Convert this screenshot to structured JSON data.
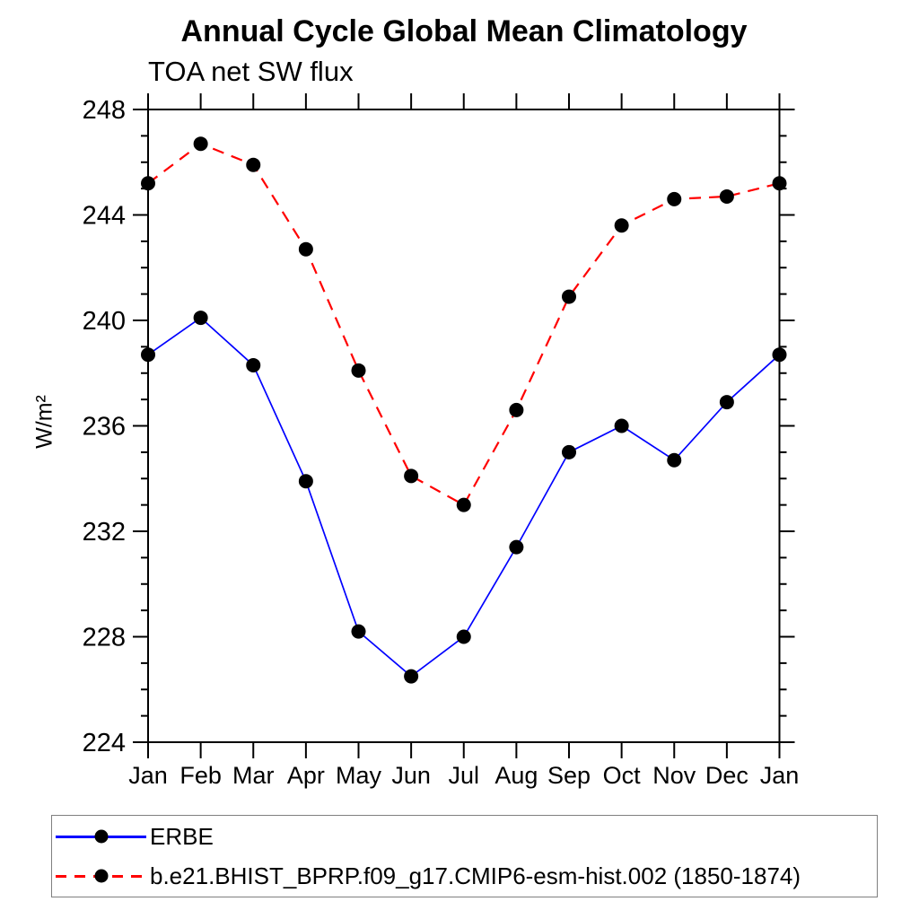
{
  "page": {
    "background": "#ffffff",
    "text_color": "#000000"
  },
  "chart_data": {
    "type": "line",
    "title": "Annual Cycle Global Mean Climatology",
    "subtitle": "TOA net SW flux",
    "ylabel": "W/m²",
    "x_categories": [
      "Jan",
      "Feb",
      "Mar",
      "Apr",
      "May",
      "Jun",
      "Jul",
      "Aug",
      "Sep",
      "Oct",
      "Nov",
      "Dec",
      "Jan"
    ],
    "ylim": [
      224,
      248
    ],
    "ytick_major_step": 4,
    "ytick_minor_step": 1,
    "ytick_labels": [
      "224",
      "228",
      "232",
      "236",
      "240",
      "244",
      "248"
    ],
    "grid": false,
    "legend_position": "bottom-left-box",
    "axis_color": "#000000",
    "marker_color": "#000000",
    "legend_border_color": "#7f7f7f",
    "series": [
      {
        "name": "ERBE",
        "color": "#0000ff",
        "line_style": "solid",
        "marker": "filled-circle",
        "values": [
          238.7,
          240.1,
          238.3,
          233.9,
          228.2,
          226.5,
          228.0,
          231.4,
          235.0,
          236.0,
          234.7,
          236.9,
          238.7
        ]
      },
      {
        "name": "b.e21.BHIST_BPRP.f09_g17.CMIP6-esm-hist.002 (1850-1874)",
        "color": "#ff0000",
        "line_style": "dashed",
        "marker": "filled-circle",
        "values": [
          245.2,
          246.7,
          245.9,
          242.7,
          238.1,
          234.1,
          233.0,
          236.6,
          240.9,
          243.6,
          244.6,
          244.7,
          245.2
        ]
      }
    ]
  }
}
